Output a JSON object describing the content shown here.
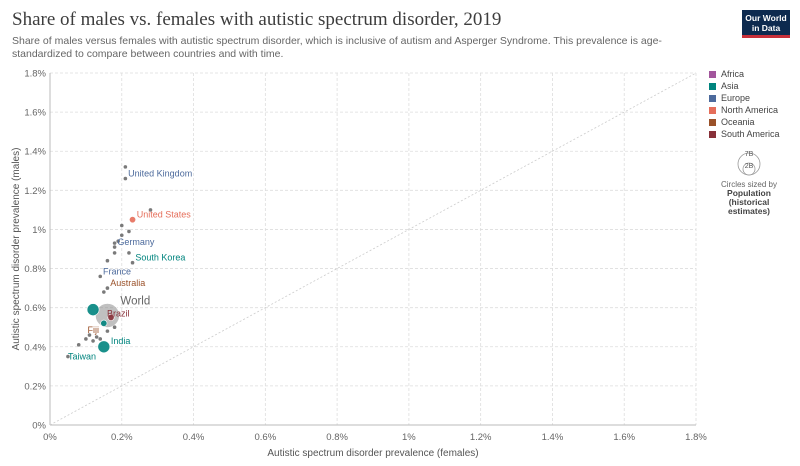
{
  "header": {
    "title": "Share of males vs. females with autistic spectrum disorder, 2019",
    "subtitle": "Share of males versus females with autistic spectrum disorder, which is inclusive of autism and Asperger Syndrome. This prevalence is age-standardized to compare between countries and with time.",
    "logo_line1": "Our World",
    "logo_line2": "in Data"
  },
  "legend": {
    "items": [
      {
        "label": "Africa",
        "color": "#a2559c"
      },
      {
        "label": "Asia",
        "color": "#00847e"
      },
      {
        "label": "Europe",
        "color": "#4c6a9c"
      },
      {
        "label": "North America",
        "color": "#e56e5a"
      },
      {
        "label": "Oceania",
        "color": "#9a5129"
      },
      {
        "label": "South America",
        "color": "#883039"
      }
    ],
    "size_big": "7B",
    "size_small": "2B",
    "size_caption": "Circles sized by",
    "size_metric_line1": "Population",
    "size_metric_line2": "(historical",
    "size_metric_line3": "estimates)"
  },
  "chart_data": {
    "type": "scatter",
    "xlabel": "Autistic spectrum disorder prevalence (females)",
    "ylabel": "Autistic spectrum disorder prevalence (males)",
    "xlim": [
      0,
      1.8
    ],
    "ylim": [
      0,
      1.8
    ],
    "x_ticks": [
      "0%",
      "0.2%",
      "0.4%",
      "0.6%",
      "0.8%",
      "1%",
      "1.2%",
      "1.4%",
      "1.6%",
      "1.8%"
    ],
    "y_ticks": [
      "0%",
      "0.2%",
      "0.4%",
      "0.6%",
      "0.8%",
      "1%",
      "1.2%",
      "1.4%",
      "1.6%",
      "1.8%"
    ],
    "diagonal_reference_line": true,
    "points": [
      {
        "x": 0.21,
        "y": 1.32,
        "region": "Europe",
        "size": "small"
      },
      {
        "x": 0.21,
        "y": 1.26,
        "label": "United Kingdom",
        "region": "Europe",
        "size": "small"
      },
      {
        "x": 0.28,
        "y": 1.1,
        "region": "Europe",
        "size": "small"
      },
      {
        "x": 0.23,
        "y": 1.05,
        "label": "United States",
        "region": "North America",
        "size": "medium"
      },
      {
        "x": 0.2,
        "y": 1.02,
        "region": "Europe",
        "size": "small"
      },
      {
        "x": 0.22,
        "y": 0.99,
        "region": "Europe",
        "size": "small"
      },
      {
        "x": 0.2,
        "y": 0.97,
        "region": "Europe",
        "size": "small"
      },
      {
        "x": 0.19,
        "y": 0.94,
        "region": "Europe",
        "size": "small"
      },
      {
        "x": 0.18,
        "y": 0.93,
        "region": "Europe",
        "size": "small"
      },
      {
        "x": 0.18,
        "y": 0.91,
        "label": "Germany",
        "region": "Europe",
        "size": "small"
      },
      {
        "x": 0.22,
        "y": 0.88,
        "region": "Europe",
        "size": "small"
      },
      {
        "x": 0.18,
        "y": 0.88,
        "region": "Europe",
        "size": "small"
      },
      {
        "x": 0.23,
        "y": 0.83,
        "label": "South Korea",
        "region": "Asia",
        "size": "small"
      },
      {
        "x": 0.16,
        "y": 0.84,
        "region": "Europe",
        "size": "small"
      },
      {
        "x": 0.14,
        "y": 0.76,
        "label": "France",
        "region": "Europe",
        "size": "small"
      },
      {
        "x": 0.16,
        "y": 0.7,
        "label": "Australia",
        "region": "Oceania",
        "size": "small"
      },
      {
        "x": 0.15,
        "y": 0.68,
        "region": "Europe",
        "size": "small"
      },
      {
        "x": 0.16,
        "y": 0.56,
        "label": "World",
        "region": "World",
        "size": "world"
      },
      {
        "x": 0.12,
        "y": 0.59,
        "region": "Asia",
        "size": "large"
      },
      {
        "x": 0.17,
        "y": 0.55,
        "label": "Brazil",
        "region": "South America",
        "size": "medium"
      },
      {
        "x": 0.15,
        "y": 0.52,
        "region": "Asia",
        "size": "medium"
      },
      {
        "x": 0.18,
        "y": 0.5,
        "region": "Africa",
        "size": "small"
      },
      {
        "x": 0.16,
        "y": 0.48,
        "region": "Asia",
        "size": "small"
      },
      {
        "x": 0.11,
        "y": 0.46,
        "label": "Fiji",
        "region": "Oceania",
        "size": "small"
      },
      {
        "x": 0.13,
        "y": 0.45,
        "region": "Asia",
        "size": "small"
      },
      {
        "x": 0.14,
        "y": 0.44,
        "region": "Africa",
        "size": "small"
      },
      {
        "x": 0.12,
        "y": 0.43,
        "region": "Africa",
        "size": "small"
      },
      {
        "x": 0.1,
        "y": 0.44,
        "region": "Asia",
        "size": "small"
      },
      {
        "x": 0.15,
        "y": 0.4,
        "label": "India",
        "region": "Asia",
        "size": "large"
      },
      {
        "x": 0.08,
        "y": 0.41,
        "region": "Asia",
        "size": "small"
      },
      {
        "x": 0.05,
        "y": 0.35,
        "label": "Taiwan",
        "region": "Asia",
        "size": "small"
      }
    ]
  }
}
